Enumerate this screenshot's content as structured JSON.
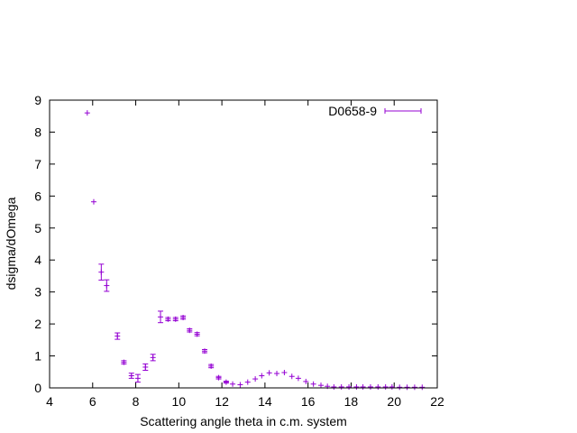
{
  "chart_data": {
    "type": "scatter",
    "title": "",
    "xlabel": "Scattering angle theta in c.m. system",
    "ylabel": "dsigma/dOmega",
    "xlim": [
      4,
      22
    ],
    "ylim": [
      0,
      9
    ],
    "x_ticks": [
      "4",
      "6",
      "8",
      "10",
      "12",
      "14",
      "16",
      "18",
      "20",
      "22"
    ],
    "y_ticks": [
      "0",
      "1",
      "2",
      "3",
      "4",
      "5",
      "6",
      "7",
      "8",
      "9"
    ],
    "grid": false,
    "legend_position": "top-right",
    "series": [
      {
        "name": "D0658-9",
        "color": "#9400d3",
        "x": [
          5.75,
          6.05,
          6.4,
          6.65,
          7.15,
          7.45,
          7.8,
          8.1,
          8.45,
          8.8,
          9.15,
          9.5,
          9.85,
          10.2,
          10.5,
          10.85,
          11.2,
          11.5,
          11.85,
          12.2,
          12.5,
          12.85,
          13.2,
          13.55,
          13.85,
          14.2,
          14.55,
          14.9,
          15.25,
          15.55,
          15.9,
          16.25,
          16.6,
          16.9,
          17.2,
          17.55,
          17.9,
          18.25,
          18.55,
          18.9,
          19.25,
          19.6,
          19.9,
          20.25,
          20.6,
          20.95,
          21.3
        ],
        "y": [
          8.6,
          5.82,
          3.62,
          3.2,
          1.62,
          0.8,
          0.38,
          0.3,
          0.65,
          0.95,
          2.22,
          2.15,
          2.15,
          2.2,
          1.8,
          1.68,
          1.15,
          0.68,
          0.32,
          0.18,
          0.12,
          0.1,
          0.18,
          0.28,
          0.38,
          0.47,
          0.45,
          0.48,
          0.36,
          0.3,
          0.2,
          0.12,
          0.08,
          0.05,
          0.03,
          0.03,
          0.03,
          0.03,
          0.03,
          0.03,
          0.03,
          0.03,
          0.03,
          0.02,
          0.02,
          0.02,
          0.02
        ],
        "yerr": [
          0.02,
          0.02,
          0.25,
          0.18,
          0.1,
          0.05,
          0.08,
          0.12,
          0.1,
          0.1,
          0.18,
          0.05,
          0.05,
          0.05,
          0.05,
          0.05,
          0.05,
          0.05,
          0.04,
          0.03,
          0.02,
          0.02,
          0.02,
          0.02,
          0.02,
          0.02,
          0.02,
          0.02,
          0.02,
          0.02,
          0.02,
          0.02,
          0.02,
          0.01,
          0.01,
          0.01,
          0.01,
          0.01,
          0.01,
          0.01,
          0.01,
          0.01,
          0.01,
          0.01,
          0.01,
          0.01,
          0.01
        ]
      }
    ]
  }
}
